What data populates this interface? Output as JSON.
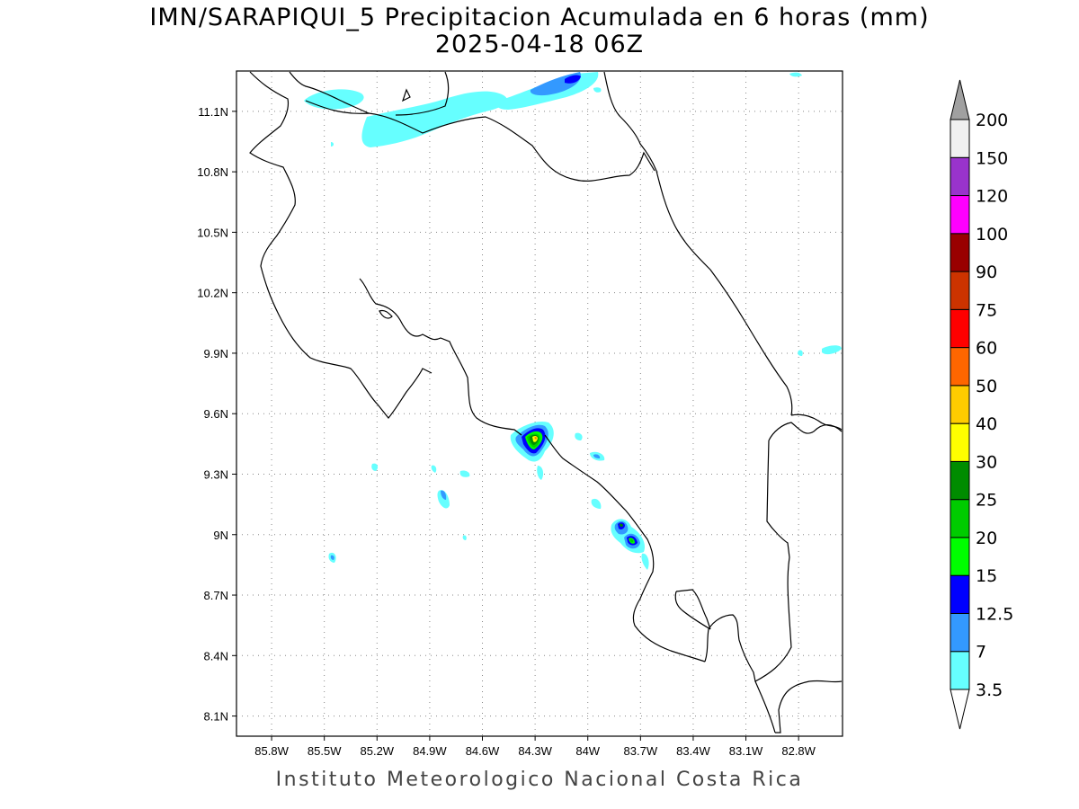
{
  "title_line1": "IMN/SARAPIQUI_5 Precipitacion Acumulada en 6 horas (mm)",
  "title_line2": "2025-04-18 06Z",
  "footer": "Instituto Meteorologico Nacional Costa Rica",
  "map": {
    "lon_range": [
      -86.0,
      -82.55
    ],
    "lat_range": [
      8.0,
      11.3
    ],
    "lon_ticks": [
      -85.8,
      -85.5,
      -85.2,
      -84.9,
      -84.6,
      -84.3,
      -84.0,
      -83.7,
      -83.4,
      -83.1,
      -82.8
    ],
    "lon_tick_labels": [
      "85.8W",
      "85.5W",
      "85.2W",
      "84.9W",
      "84.6W",
      "84.3W",
      "84W",
      "83.7W",
      "83.4W",
      "83.1W",
      "82.8W"
    ],
    "lat_ticks": [
      8.1,
      8.4,
      8.7,
      9.0,
      9.3,
      9.6,
      9.9,
      10.2,
      10.5,
      10.8,
      11.1
    ],
    "lat_tick_labels": [
      "8.1N",
      "8.4N",
      "8.7N",
      "9N",
      "9.3N",
      "9.6N",
      "9.9N",
      "10.2N",
      "10.5N",
      "10.8N",
      "11.1N"
    ],
    "grid": "dotted"
  },
  "colorbar": {
    "labels": [
      "3.5",
      "7",
      "12.5",
      "15",
      "20",
      "25",
      "30",
      "40",
      "50",
      "60",
      "75",
      "90",
      "100",
      "120",
      "150",
      "200"
    ],
    "colors": [
      "#66ffff",
      "#3399ff",
      "#0000ff",
      "#00ff00",
      "#00cc00",
      "#008c00",
      "#ffff00",
      "#ffcc00",
      "#ff6600",
      "#ff0000",
      "#cc3300",
      "#990000",
      "#ff00ff",
      "#9933cc",
      "#f0f0f0",
      "#a0a0a0"
    ],
    "under_color": "#ffffff",
    "over_color": "#a0a0a0"
  }
}
